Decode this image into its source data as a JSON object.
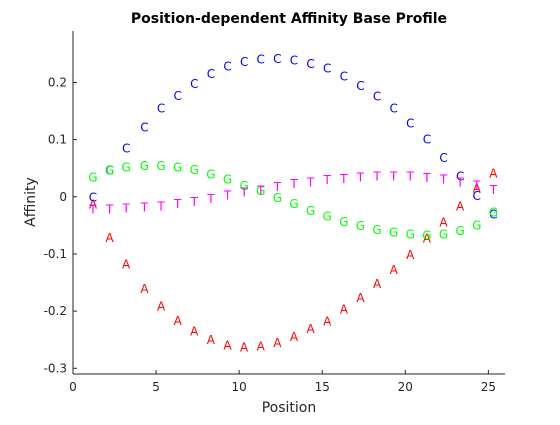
{
  "chart_data": {
    "type": "scatter",
    "title": "Position-dependent Affinity Base Profile",
    "xlabel": "Position",
    "ylabel": "Affinity",
    "xlim": [
      0,
      26
    ],
    "ylim": [
      -0.31,
      0.29
    ],
    "xticks": [
      "0",
      "5",
      "10",
      "15",
      "20",
      "25"
    ],
    "xtick_values": [
      0,
      5,
      10,
      15,
      20,
      25
    ],
    "yticks": [
      "-0.3",
      "-0.2",
      "-0.1",
      "0",
      "0.1",
      "0.2"
    ],
    "ytick_values": [
      -0.3,
      -0.2,
      -0.1,
      0,
      0.1,
      0.2
    ],
    "grid": false,
    "x": [
      1.2,
      2.2,
      3.2,
      4.3,
      5.3,
      6.3,
      7.3,
      8.3,
      9.3,
      10.3,
      11.3,
      12.3,
      13.3,
      14.3,
      15.3,
      16.3,
      17.3,
      18.3,
      19.3,
      20.3,
      21.3,
      22.3,
      23.3,
      24.3,
      25.3
    ],
    "series": [
      {
        "name": "A",
        "color": "#ff0000",
        "values": [
          -0.013,
          -0.071,
          -0.118,
          -0.16,
          -0.191,
          -0.216,
          -0.235,
          -0.25,
          -0.259,
          -0.263,
          -0.261,
          -0.255,
          -0.244,
          -0.23,
          -0.217,
          -0.196,
          -0.176,
          -0.152,
          -0.127,
          -0.101,
          -0.072,
          -0.044,
          -0.016,
          0.015,
          0.042
        ]
      },
      {
        "name": "C",
        "color": "#0000ff",
        "values": [
          0.0,
          0.047,
          0.085,
          0.122,
          0.155,
          0.177,
          0.198,
          0.216,
          0.229,
          0.237,
          0.241,
          0.242,
          0.239,
          0.233,
          0.225,
          0.211,
          0.195,
          0.176,
          0.155,
          0.129,
          0.101,
          0.069,
          0.036,
          0.002,
          -0.03
        ]
      },
      {
        "name": "G",
        "color": "#00ff00",
        "values": [
          0.035,
          0.047,
          0.052,
          0.055,
          0.055,
          0.052,
          0.048,
          0.04,
          0.031,
          0.02,
          0.011,
          -0.001,
          -0.012,
          -0.024,
          -0.034,
          -0.043,
          -0.05,
          -0.057,
          -0.062,
          -0.065,
          -0.067,
          -0.065,
          -0.059,
          -0.049,
          -0.027
        ]
      },
      {
        "name": "T",
        "color": "#ff00ff",
        "values": [
          -0.021,
          -0.021,
          -0.02,
          -0.018,
          -0.016,
          -0.012,
          -0.008,
          -0.003,
          0.003,
          0.008,
          0.012,
          0.018,
          0.023,
          0.026,
          0.03,
          0.032,
          0.035,
          0.036,
          0.036,
          0.036,
          0.034,
          0.031,
          0.026,
          0.021,
          0.013
        ]
      }
    ]
  }
}
